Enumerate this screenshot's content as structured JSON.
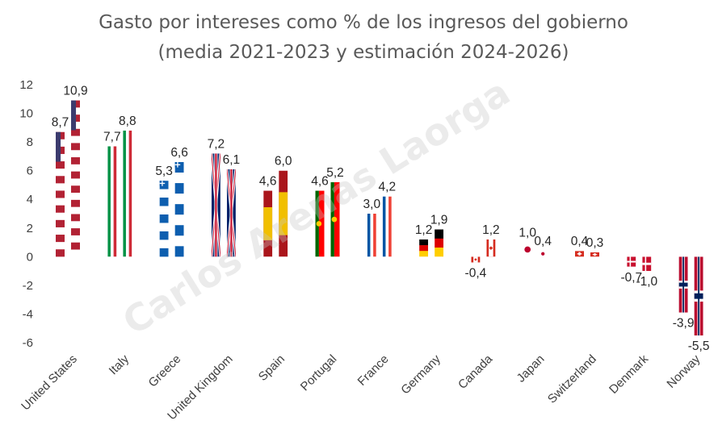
{
  "chart_data": {
    "type": "bar",
    "title_line1": "Gasto por intereses como % de los ingresos del gobierno",
    "title_line2": "(media 2021-2023 y estimación 2024-2026)",
    "watermark": "Carlos Arenas Laorga",
    "ylim": [
      -6,
      12
    ],
    "yticks": [
      -6,
      -4,
      -2,
      0,
      2,
      4,
      6,
      8,
      10,
      12
    ],
    "series": [
      {
        "name": "media 2021-2023"
      },
      {
        "name": "estimación 2024-2026"
      }
    ],
    "categories": [
      {
        "name": "United States",
        "flag": "us",
        "values": [
          8.7,
          10.9
        ],
        "labels": [
          "8,7",
          "10,9"
        ]
      },
      {
        "name": "Italy",
        "flag": "it",
        "values": [
          7.7,
          8.8
        ],
        "labels": [
          "7,7",
          "8,8"
        ]
      },
      {
        "name": "Greece",
        "flag": "gr",
        "values": [
          5.3,
          6.6
        ],
        "labels": [
          "5,3",
          "6,6"
        ]
      },
      {
        "name": "United Kingdom",
        "flag": "gb",
        "values": [
          7.2,
          6.1
        ],
        "labels": [
          "7,2",
          "6,1"
        ]
      },
      {
        "name": "Spain",
        "flag": "es",
        "values": [
          4.6,
          6.0
        ],
        "labels": [
          "4,6",
          "6,0"
        ]
      },
      {
        "name": "Portugal",
        "flag": "pt",
        "values": [
          4.6,
          5.2
        ],
        "labels": [
          "4,6",
          "5,2"
        ]
      },
      {
        "name": "France",
        "flag": "fr",
        "values": [
          3.0,
          4.2
        ],
        "labels": [
          "3,0",
          "4,2"
        ]
      },
      {
        "name": "Germany",
        "flag": "de",
        "values": [
          1.2,
          1.9
        ],
        "labels": [
          "1,2",
          "1,9"
        ]
      },
      {
        "name": "Canada",
        "flag": "ca",
        "values": [
          -0.4,
          1.2
        ],
        "labels": [
          "-0,4",
          "1,2"
        ]
      },
      {
        "name": "Japan",
        "flag": "jp",
        "values": [
          1.0,
          0.4
        ],
        "labels": [
          "1,0",
          "0,4"
        ]
      },
      {
        "name": "Switzerland",
        "flag": "ch",
        "values": [
          0.4,
          0.3
        ],
        "labels": [
          "0,4",
          "0,3"
        ]
      },
      {
        "name": "Denmark",
        "flag": "dk",
        "values": [
          -0.7,
          -1.0
        ],
        "labels": [
          "-0,7",
          "-1,0"
        ]
      },
      {
        "name": "Norway",
        "flag": "no",
        "values": [
          -3.9,
          -5.5
        ],
        "labels": [
          "-3,9",
          "-5,5"
        ]
      }
    ],
    "colors": {
      "us_red": "#b22234",
      "us_blue": "#3c3b6e",
      "it_green": "#009246",
      "it_red": "#ce2b37",
      "gr_blue": "#0d5eaf",
      "gb_blue": "#012169",
      "gb_red": "#c8102e",
      "es_red": "#aa151b",
      "es_yellow": "#f1bf00",
      "pt_green": "#006600",
      "pt_red": "#ff0000",
      "pt_yellow": "#ffcc00",
      "fr_blue": "#0055a4",
      "fr_red": "#ef4135",
      "de_black": "#000000",
      "de_red": "#dd0000",
      "de_gold": "#ffce00",
      "ca_red": "#d52b1e",
      "jp_red": "#bc002d",
      "ch_red": "#d52b1e",
      "dk_red": "#c8102e",
      "no_red": "#ba0c2f",
      "no_blue": "#00205b",
      "title": "#595959",
      "axis_text": "#404040"
    }
  }
}
